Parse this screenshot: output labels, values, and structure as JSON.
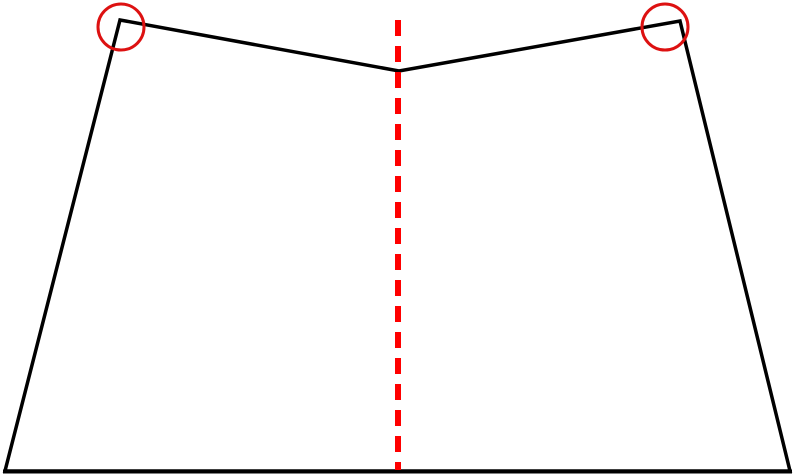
{
  "diagram": {
    "shape": "pentagon-outline",
    "annotations": {
      "symmetry_axis": "dashed-vertical-line",
      "highlighted_corners": [
        "top-left-corner",
        "top-right-corner"
      ]
    },
    "colors": {
      "outline": "#000000",
      "axis": "#ff0000",
      "highlight": "#dd1111",
      "background": "#ffffff"
    }
  }
}
